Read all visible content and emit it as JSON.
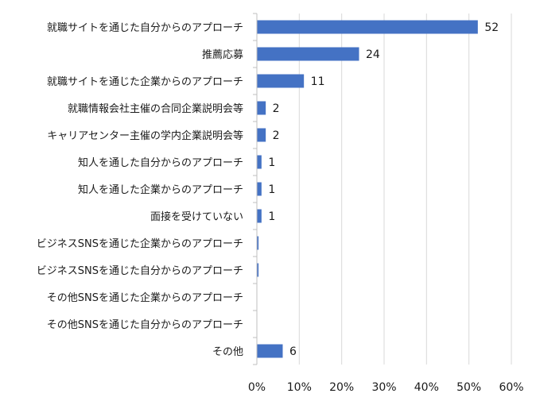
{
  "chart_data": {
    "type": "bar",
    "orientation": "horizontal",
    "categories": [
      "就職サイトを通じた自分からのアプローチ",
      "推薦応募",
      "就職サイトを通じた企業からのアプローチ",
      "就職情報会社主催の合同企業説明会等",
      "キャリアセンター主催の学内企業説明会等",
      "知人を通した自分からのアプローチ",
      "知人を通した企業からのアプローチ",
      "面接を受けていない",
      "ビジネスSNSを通じた企業からのアプローチ",
      "ビジネスSNSを通じた自分からのアプローチ",
      "その他SNSを通じた企業からのアプローチ",
      "その他SNSを通じた自分からのアプローチ",
      "その他"
    ],
    "values": [
      52,
      24,
      11,
      2,
      2,
      1,
      1,
      1,
      0.3,
      0.3,
      0,
      0,
      6
    ],
    "data_labels": [
      "52",
      "24",
      "11",
      "2",
      "2",
      "1",
      "1",
      "1",
      "",
      "",
      "",
      "",
      "6"
    ],
    "xlim": [
      0,
      60
    ],
    "x_ticks": [
      "0%",
      "10%",
      "20%",
      "30%",
      "40%",
      "50%",
      "60%"
    ],
    "grid": true,
    "legend": "none",
    "bar_color": "#4472c4",
    "grid_color": "#d9d9d9",
    "axis_color": "#bfbfbf"
  }
}
